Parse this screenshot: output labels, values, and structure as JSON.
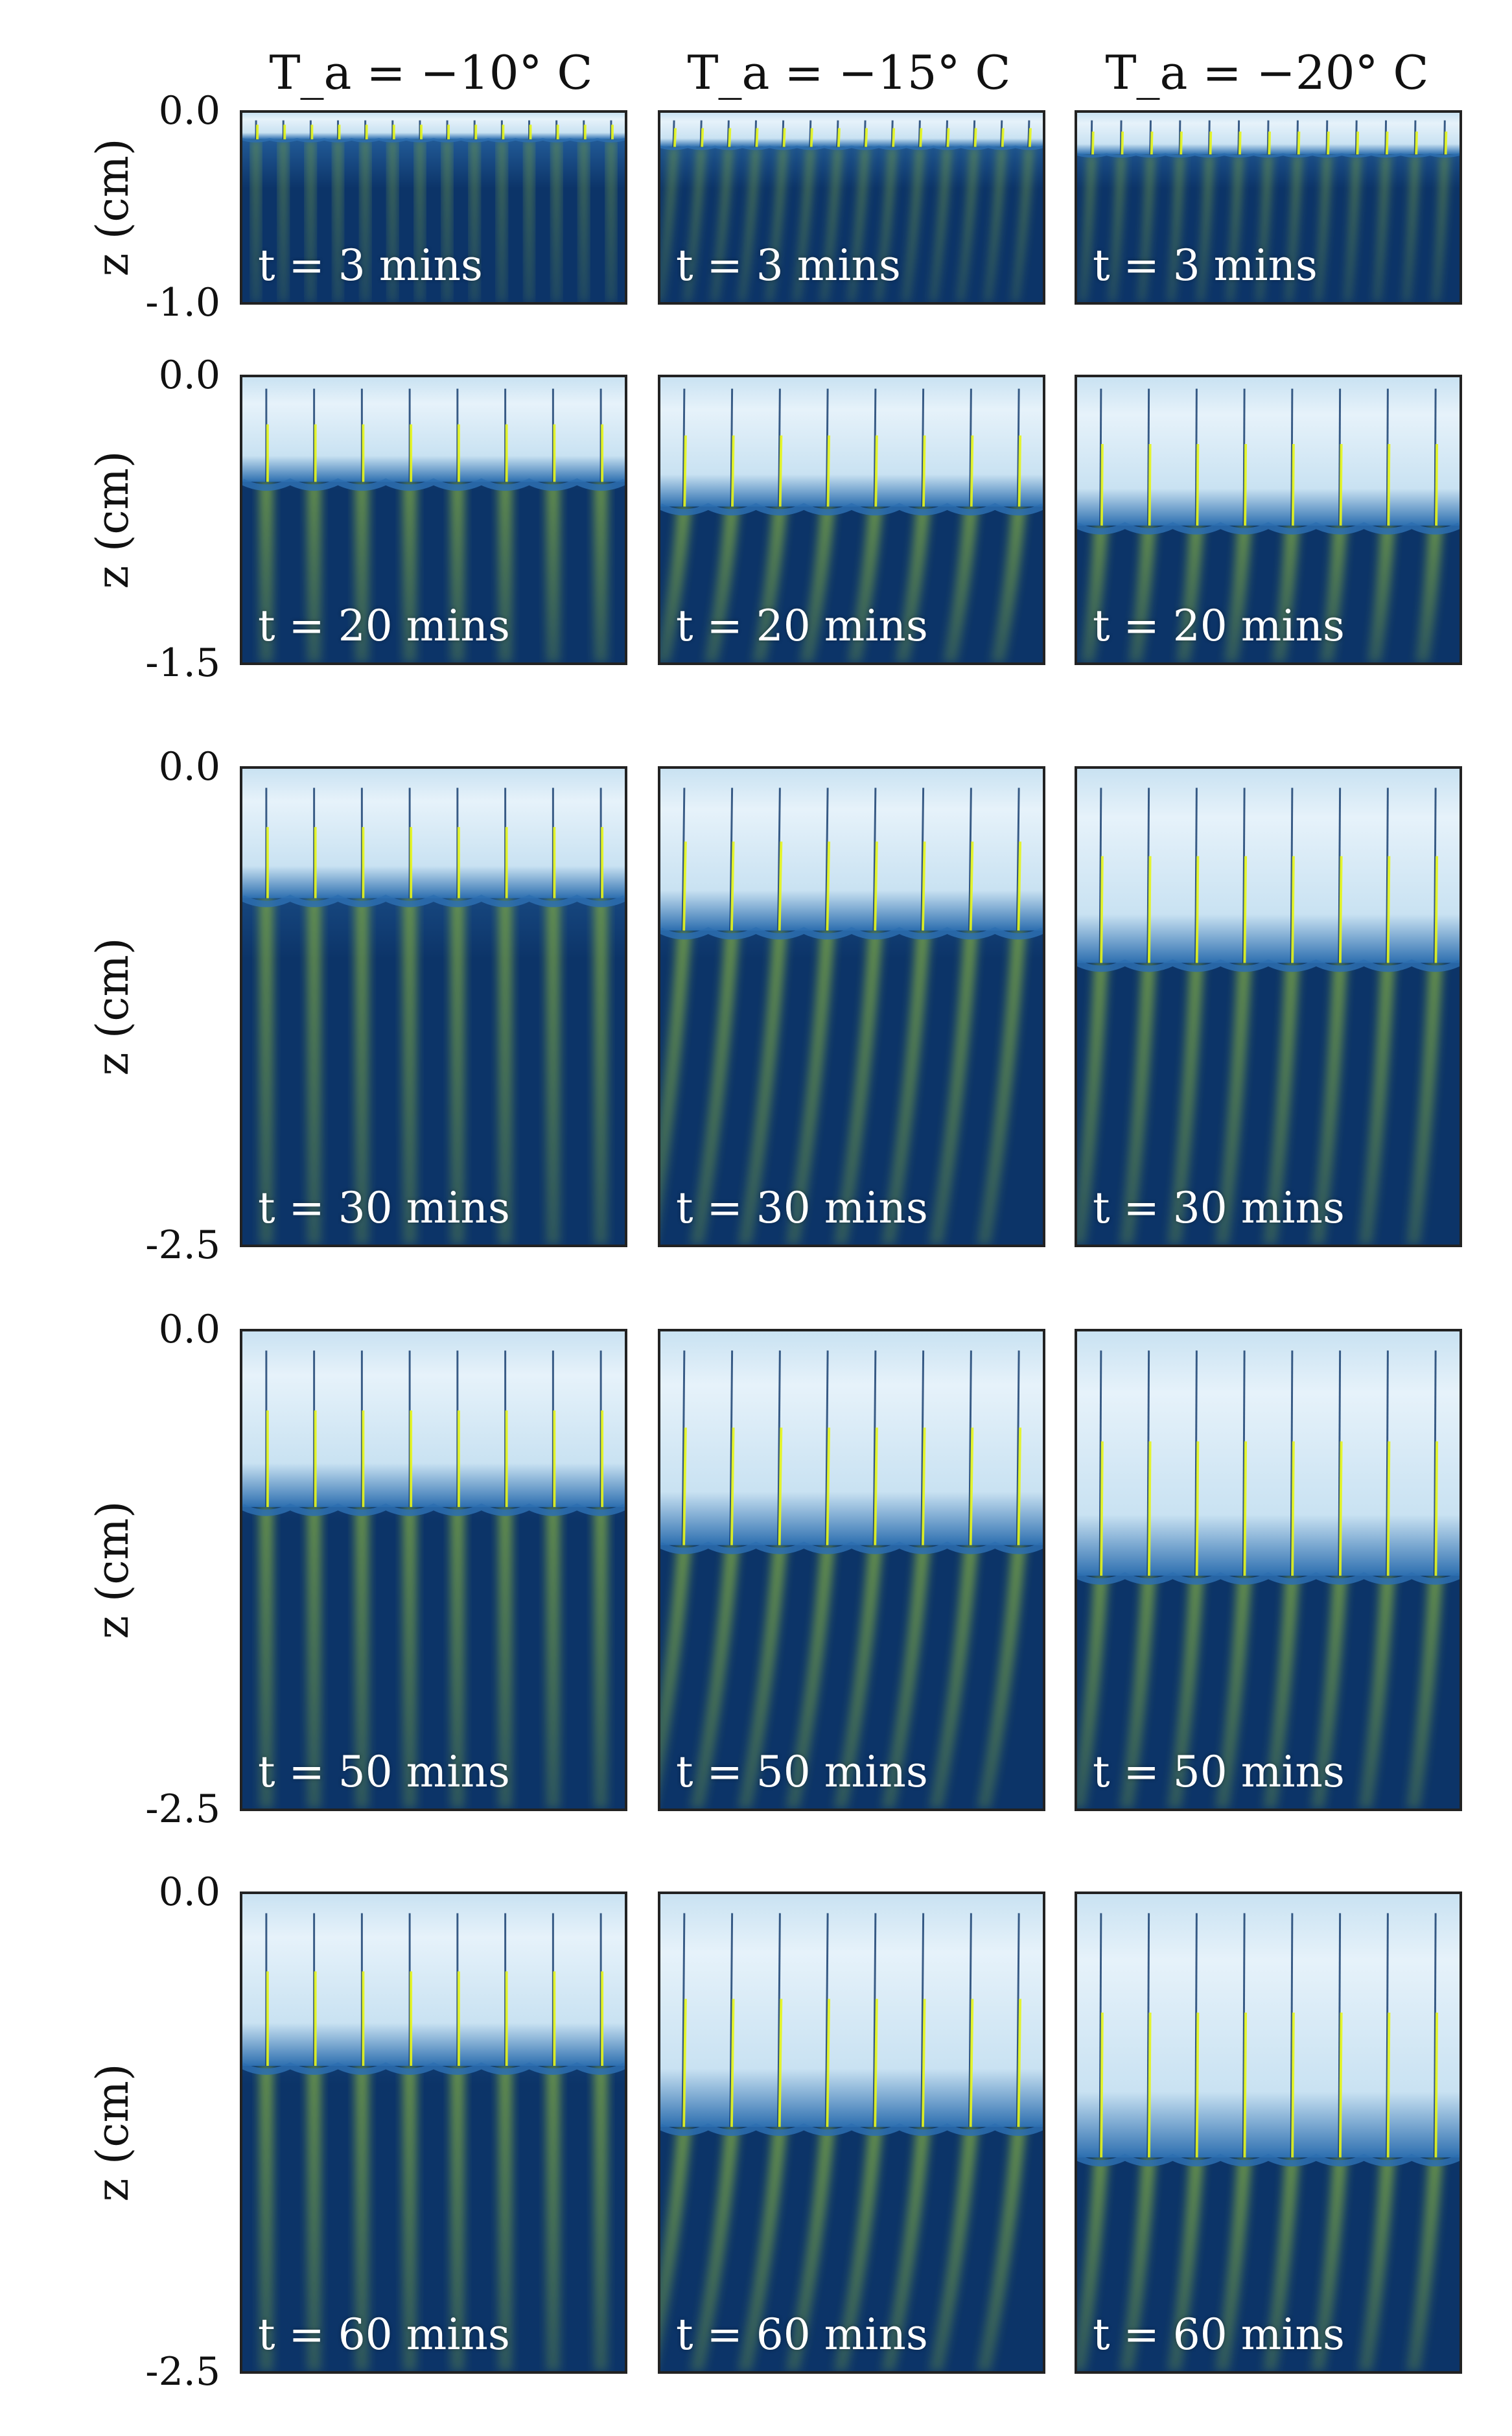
{
  "figure": {
    "column_titles": [
      "T_a = −10° C",
      "T_a = −15° C",
      "T_a = −20° C"
    ],
    "row_axis_label": "z (cm)",
    "time_labels": [
      "t = 3 mins",
      "t = 20 mins",
      "t = 30 mins",
      "t = 50 mins",
      "t = 60 mins"
    ]
  },
  "chart_data": [
    {
      "type": "heatmap",
      "title": "",
      "xlabel": "",
      "ylabel": "z (cm)",
      "row_count": 5,
      "columns": [
        {
          "temperature_label": "T_a = −10° C",
          "temperature_C": -10
        },
        {
          "temperature_label": "T_a = −15° C",
          "temperature_C": -15
        },
        {
          "temperature_label": "T_a = −20° C",
          "temperature_C": -20
        }
      ],
      "rows": [
        {
          "time_label": "t = 3 mins",
          "time_min": 3,
          "ylim": [
            -1.0,
            0.0
          ],
          "y_ticks": [
            "0.0",
            "-1.0"
          ],
          "front_depth_cm": [
            0.14,
            0.18,
            0.22
          ],
          "cell_count": [
            14,
            14,
            13
          ]
        },
        {
          "time_label": "t = 20 mins",
          "time_min": 20,
          "ylim": [
            -1.5,
            0.0
          ],
          "y_ticks": [
            "0.0",
            "-1.5"
          ],
          "front_depth_cm": [
            0.55,
            0.68,
            0.78
          ],
          "cell_count": [
            8,
            8,
            8
          ]
        },
        {
          "time_label": "t = 30 mins",
          "time_min": 30,
          "ylim": [
            -2.5,
            0.0
          ],
          "y_ticks": [
            "0.0",
            "-2.5"
          ],
          "front_depth_cm": [
            0.68,
            0.85,
            1.02
          ],
          "cell_count": [
            8,
            8,
            8
          ]
        },
        {
          "time_label": "t = 50 mins",
          "time_min": 50,
          "ylim": [
            -2.5,
            0.0
          ],
          "y_ticks": [
            "0.0",
            "-2.5"
          ],
          "front_depth_cm": [
            0.92,
            1.12,
            1.28
          ],
          "cell_count": [
            8,
            8,
            8
          ]
        },
        {
          "time_label": "t = 60 mins",
          "time_min": 60,
          "ylim": [
            -2.5,
            0.0
          ],
          "y_ticks": [
            "0.0",
            "-2.5"
          ],
          "front_depth_cm": [
            0.9,
            1.22,
            1.38
          ],
          "cell_count": [
            8,
            8,
            8
          ]
        }
      ],
      "colormap": {
        "deep": "#0c3468",
        "mid": "#2d6fb0",
        "light": "#c9e2f2",
        "ice": "#e6f2fa",
        "plume": "#6f9a48",
        "highlight": "#e6f51a"
      },
      "grid": false,
      "legend": "none"
    }
  ]
}
